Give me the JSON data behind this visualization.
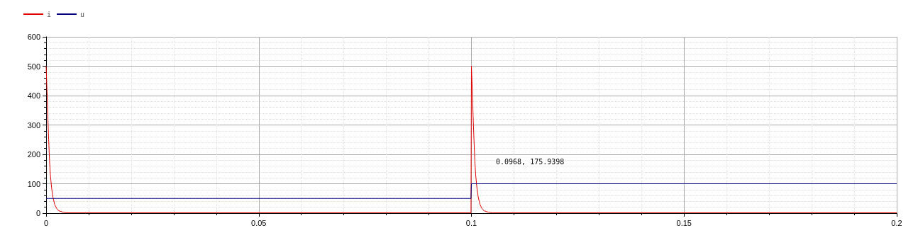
{
  "chart_data": {
    "type": "line",
    "legend": "top left",
    "grid": true,
    "marker": "none",
    "xlim": [
      0,
      0.2
    ],
    "xticks": [
      0,
      0.05,
      0.1,
      0.15,
      0.2
    ],
    "ylim": [
      0,
      600
    ],
    "yticks": [
      0,
      100,
      200,
      300,
      400,
      500,
      600
    ],
    "annotations": [
      "0.0968, 175.9398"
    ],
    "series": [
      {
        "name": "i",
        "color": "#e00000",
        "x": [
          0,
          0.0002,
          0.0004,
          0.0006,
          0.0008,
          0.001,
          0.0013,
          0.0016,
          0.002,
          0.0025,
          0.003,
          0.004,
          0.005,
          0.0999,
          0.1,
          0.1002,
          0.1004,
          0.1006,
          0.1008,
          0.101,
          0.1013,
          0.1016,
          0.102,
          0.1025,
          0.103,
          0.104,
          0.105,
          0.2
        ],
        "values": [
          500,
          420,
          330,
          250,
          180,
          130,
          85,
          55,
          30,
          15,
          8,
          3,
          1,
          1,
          500,
          420,
          330,
          250,
          180,
          130,
          85,
          55,
          30,
          15,
          8,
          3,
          1,
          1
        ]
      },
      {
        "name": "u",
        "color": "#000080",
        "x": [
          0,
          0.0999,
          0.1,
          0.2
        ],
        "values": [
          50,
          50,
          100,
          100
        ]
      }
    ]
  }
}
